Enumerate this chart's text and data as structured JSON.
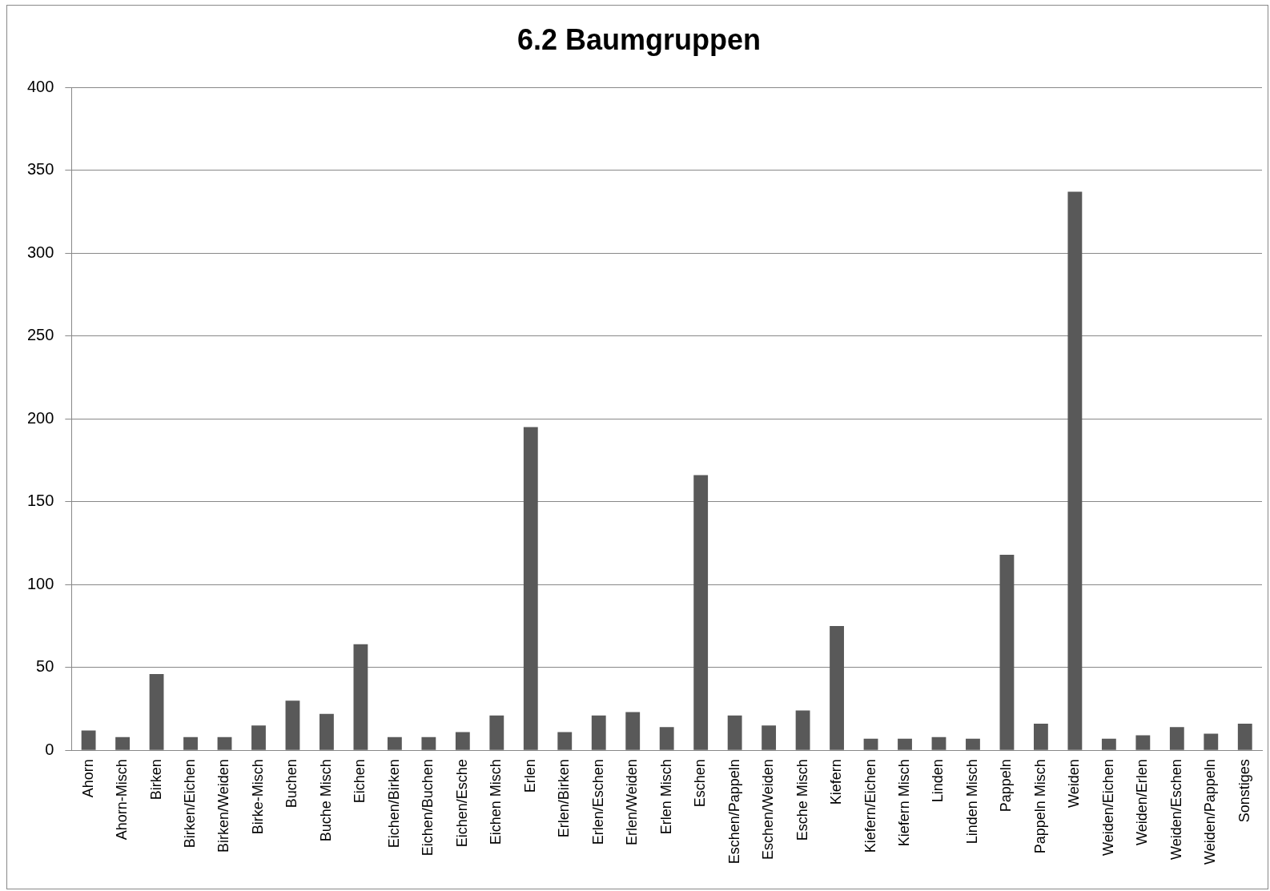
{
  "chart_data": {
    "type": "bar",
    "title": "6.2 Baumgruppen",
    "categories": [
      "Ahorn",
      "Ahorn-Misch",
      "Birken",
      "Birken/Eichen",
      "Birken/Weiden",
      "Birke-Misch",
      "Buchen",
      "Buche Misch",
      "Eichen",
      "Eichen/Birken",
      "Eichen/Buchen",
      "Eichen/Esche",
      "Eichen Misch",
      "Erlen",
      "Erlen/Birken",
      "Erlen/Eschen",
      "Erlen/Weiden",
      "Erlen Misch",
      "Eschen",
      "Eschen/Pappeln",
      "Eschen/Weiden",
      "Esche Misch",
      "Kiefern",
      "Kiefern/Eichen",
      "Kiefern Misch",
      "Linden",
      "Linden Misch",
      "Pappeln",
      "Pappeln Misch",
      "Weiden",
      "Weiden/Eichen",
      "Weiden/Erlen",
      "Weiden/Eschen",
      "Weiden/Pappeln",
      "Sonstiges"
    ],
    "values": [
      12,
      8,
      46,
      8,
      8,
      15,
      30,
      22,
      64,
      8,
      8,
      11,
      21,
      195,
      11,
      21,
      23,
      14,
      166,
      21,
      15,
      24,
      75,
      7,
      7,
      8,
      7,
      118,
      16,
      337,
      7,
      9,
      14,
      10,
      16
    ],
    "color": "#595959",
    "ylim": [
      0,
      400
    ],
    "yticks": [
      0,
      50,
      100,
      150,
      200,
      250,
      300,
      350,
      400
    ],
    "grid": "y",
    "legend": false
  }
}
